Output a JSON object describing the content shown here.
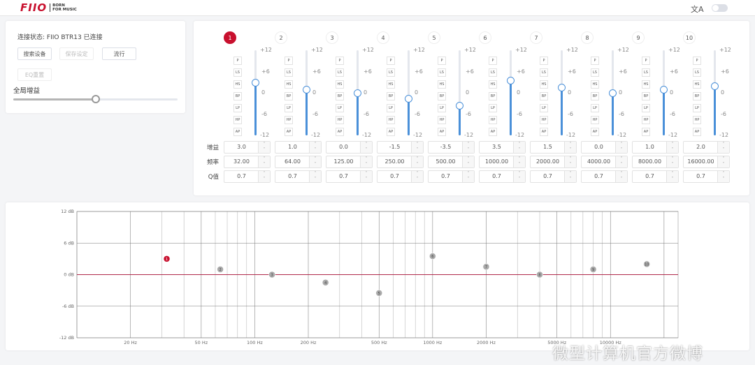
{
  "header": {
    "brand": "FIIO",
    "tagline_1": "BORN",
    "tagline_2": "FOR MUSIC",
    "language_icon": "translate-icon",
    "theme_toggle_on": false
  },
  "device": {
    "status": "连接状态: FIIO BTR13 已连接",
    "buttons": {
      "search": "搜索设备",
      "save": "保存设定",
      "preset": "流行",
      "eq_reset": "EQ重置"
    },
    "global_gain_label": "全局增益",
    "global_gain_fraction": 0.5
  },
  "bands_meta": {
    "filter_types": [
      "P",
      "LS",
      "HS",
      "BP",
      "LP",
      "HP",
      "AP"
    ],
    "scale_labels": [
      "+12",
      "+6",
      "0",
      "-6",
      "-12"
    ],
    "row_labels": {
      "gain": "增益",
      "freq": "频率",
      "q": "Q值"
    },
    "spinner_up": "˄",
    "spinner_down": "˅"
  },
  "bands": [
    {
      "n": "1",
      "gain": "3.0",
      "freq": "32.00",
      "q": "0.7",
      "active": true
    },
    {
      "n": "2",
      "gain": "1.0",
      "freq": "64.00",
      "q": "0.7"
    },
    {
      "n": "3",
      "gain": "0.0",
      "freq": "125.00",
      "q": "0.7"
    },
    {
      "n": "4",
      "gain": "-1.5",
      "freq": "250.00",
      "q": "0.7"
    },
    {
      "n": "5",
      "gain": "-3.5",
      "freq": "500.00",
      "q": "0.7"
    },
    {
      "n": "6",
      "gain": "3.5",
      "freq": "1000.00",
      "q": "0.7"
    },
    {
      "n": "7",
      "gain": "1.5",
      "freq": "2000.00",
      "q": "0.7"
    },
    {
      "n": "8",
      "gain": "0.0",
      "freq": "4000.00",
      "q": "0.7"
    },
    {
      "n": "9",
      "gain": "1.0",
      "freq": "8000.00",
      "q": "0.7"
    },
    {
      "n": "10",
      "gain": "2.0",
      "freq": "16000.00",
      "q": "0.7"
    }
  ],
  "colors": {
    "accent": "#c8102e",
    "slider": "#4a90d9",
    "point": "#aaaaaa"
  },
  "chart_data": {
    "type": "scatter",
    "x_scale": "log",
    "xlim": [
      10,
      24000
    ],
    "ylim": [
      -12,
      12
    ],
    "grid": true,
    "y_ticks": [
      "12 dB",
      "6 dB",
      "0 dB",
      "-6 dB",
      "-12 dB"
    ],
    "x_ticks": [
      {
        "v": 20,
        "label": "20 Hz"
      },
      {
        "v": 50,
        "label": "50 Hz"
      },
      {
        "v": 100,
        "label": "100 Hz"
      },
      {
        "v": 200,
        "label": "200 Hz"
      },
      {
        "v": 500,
        "label": "500 Hz"
      },
      {
        "v": 1000,
        "label": "1000 Hz"
      },
      {
        "v": 2000,
        "label": "2000 Hz"
      },
      {
        "v": 5000,
        "label": "5000 Hz"
      },
      {
        "v": 10000,
        "label": "10000 Hz"
      }
    ],
    "points": [
      {
        "label": "1",
        "x": 32,
        "y": 3
      },
      {
        "label": "2",
        "x": 64,
        "y": 1
      },
      {
        "label": "3",
        "x": 125,
        "y": 0
      },
      {
        "label": "4",
        "x": 250,
        "y": -1.5
      },
      {
        "label": "5",
        "x": 500,
        "y": -3.5
      },
      {
        "label": "6",
        "x": 1000,
        "y": 3.5
      },
      {
        "label": "7",
        "x": 2000,
        "y": 1.5
      },
      {
        "label": "8",
        "x": 4000,
        "y": 0
      },
      {
        "label": "9",
        "x": 8000,
        "y": 1
      },
      {
        "label": "10",
        "x": 16000,
        "y": 2
      }
    ]
  },
  "watermark": "微型计算机官方微博"
}
